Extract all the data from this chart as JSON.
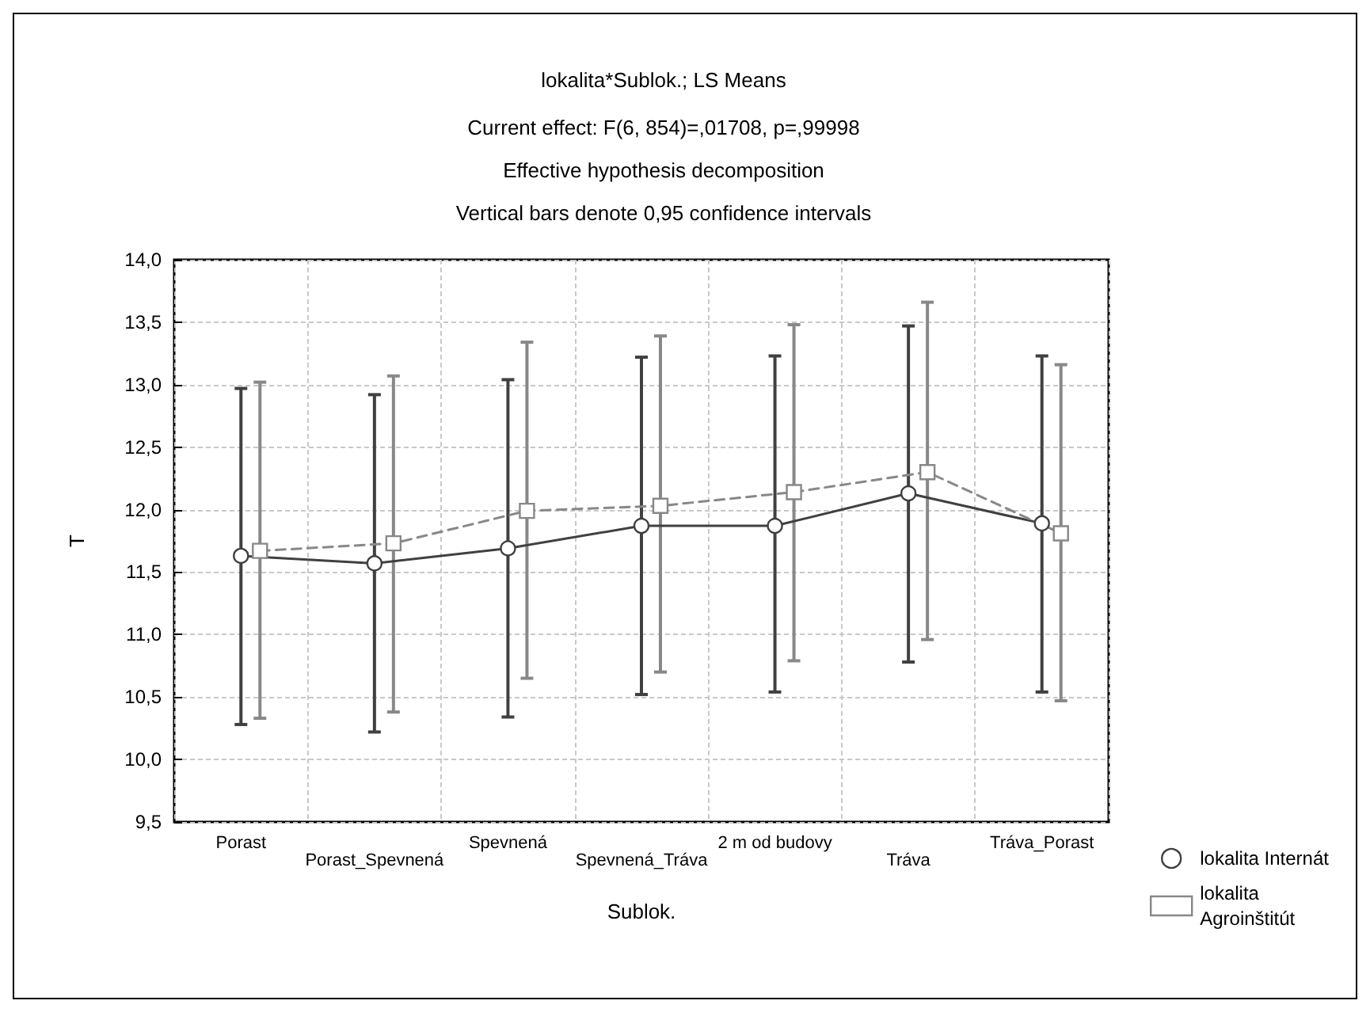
{
  "chart_data": {
    "type": "line",
    "title": "lokalita*Sublok.; LS Means",
    "subtitle": "Current effect: F(6, 854)=,01708, p=,99998",
    "annotations": [
      "Effective hypothesis decomposition",
      "Vertical bars denote 0,95 confidence intervals"
    ],
    "xlabel": "Sublok.",
    "ylabel": "T",
    "categories": [
      "Porast",
      "Porast_Spevnená",
      "Spevnená",
      "Spevnená_Tráva",
      "2 m od budovy",
      "Tráva",
      "Tráva_Porast"
    ],
    "series": [
      {
        "name": "lokalita Internát",
        "color": "#404040",
        "marker": "circle",
        "line_style": "solid",
        "values": [
          11.63,
          11.57,
          11.69,
          11.87,
          11.87,
          12.13,
          11.89
        ],
        "errors": [
          [
            10.28,
            12.97
          ],
          [
            10.22,
            12.92
          ],
          [
            10.34,
            13.04
          ],
          [
            10.52,
            13.22
          ],
          [
            10.54,
            13.23
          ],
          [
            10.78,
            13.47
          ],
          [
            10.54,
            13.23
          ]
        ]
      },
      {
        "name": "lokalita Agroinštitút",
        "color": "#888888",
        "marker": "square",
        "line_style": "dashed",
        "values": [
          11.67,
          11.73,
          11.99,
          12.03,
          12.14,
          12.3,
          11.81
        ],
        "errors": [
          [
            10.33,
            13.02
          ],
          [
            10.38,
            13.07
          ],
          [
            10.65,
            13.34
          ],
          [
            10.7,
            13.39
          ],
          [
            10.79,
            13.48
          ],
          [
            10.96,
            13.66
          ],
          [
            10.47,
            13.16
          ]
        ]
      }
    ],
    "ylim": [
      9.5,
      14.0
    ],
    "yticks": [
      {
        "value": 9.5,
        "label": "9,5"
      },
      {
        "value": 10,
        "label": "10,0"
      },
      {
        "value": 10.5,
        "label": "10,5"
      },
      {
        "value": 11,
        "label": "11,0"
      },
      {
        "value": 11.5,
        "label": "11,5"
      },
      {
        "value": 12,
        "label": "12,0"
      },
      {
        "value": 12.5,
        "label": "12,5"
      },
      {
        "value": 13,
        "label": "13,0"
      },
      {
        "value": 13.5,
        "label": "13,5"
      },
      {
        "value": 14,
        "label": "14,0"
      }
    ],
    "grid": true,
    "legend": "bottom right"
  }
}
